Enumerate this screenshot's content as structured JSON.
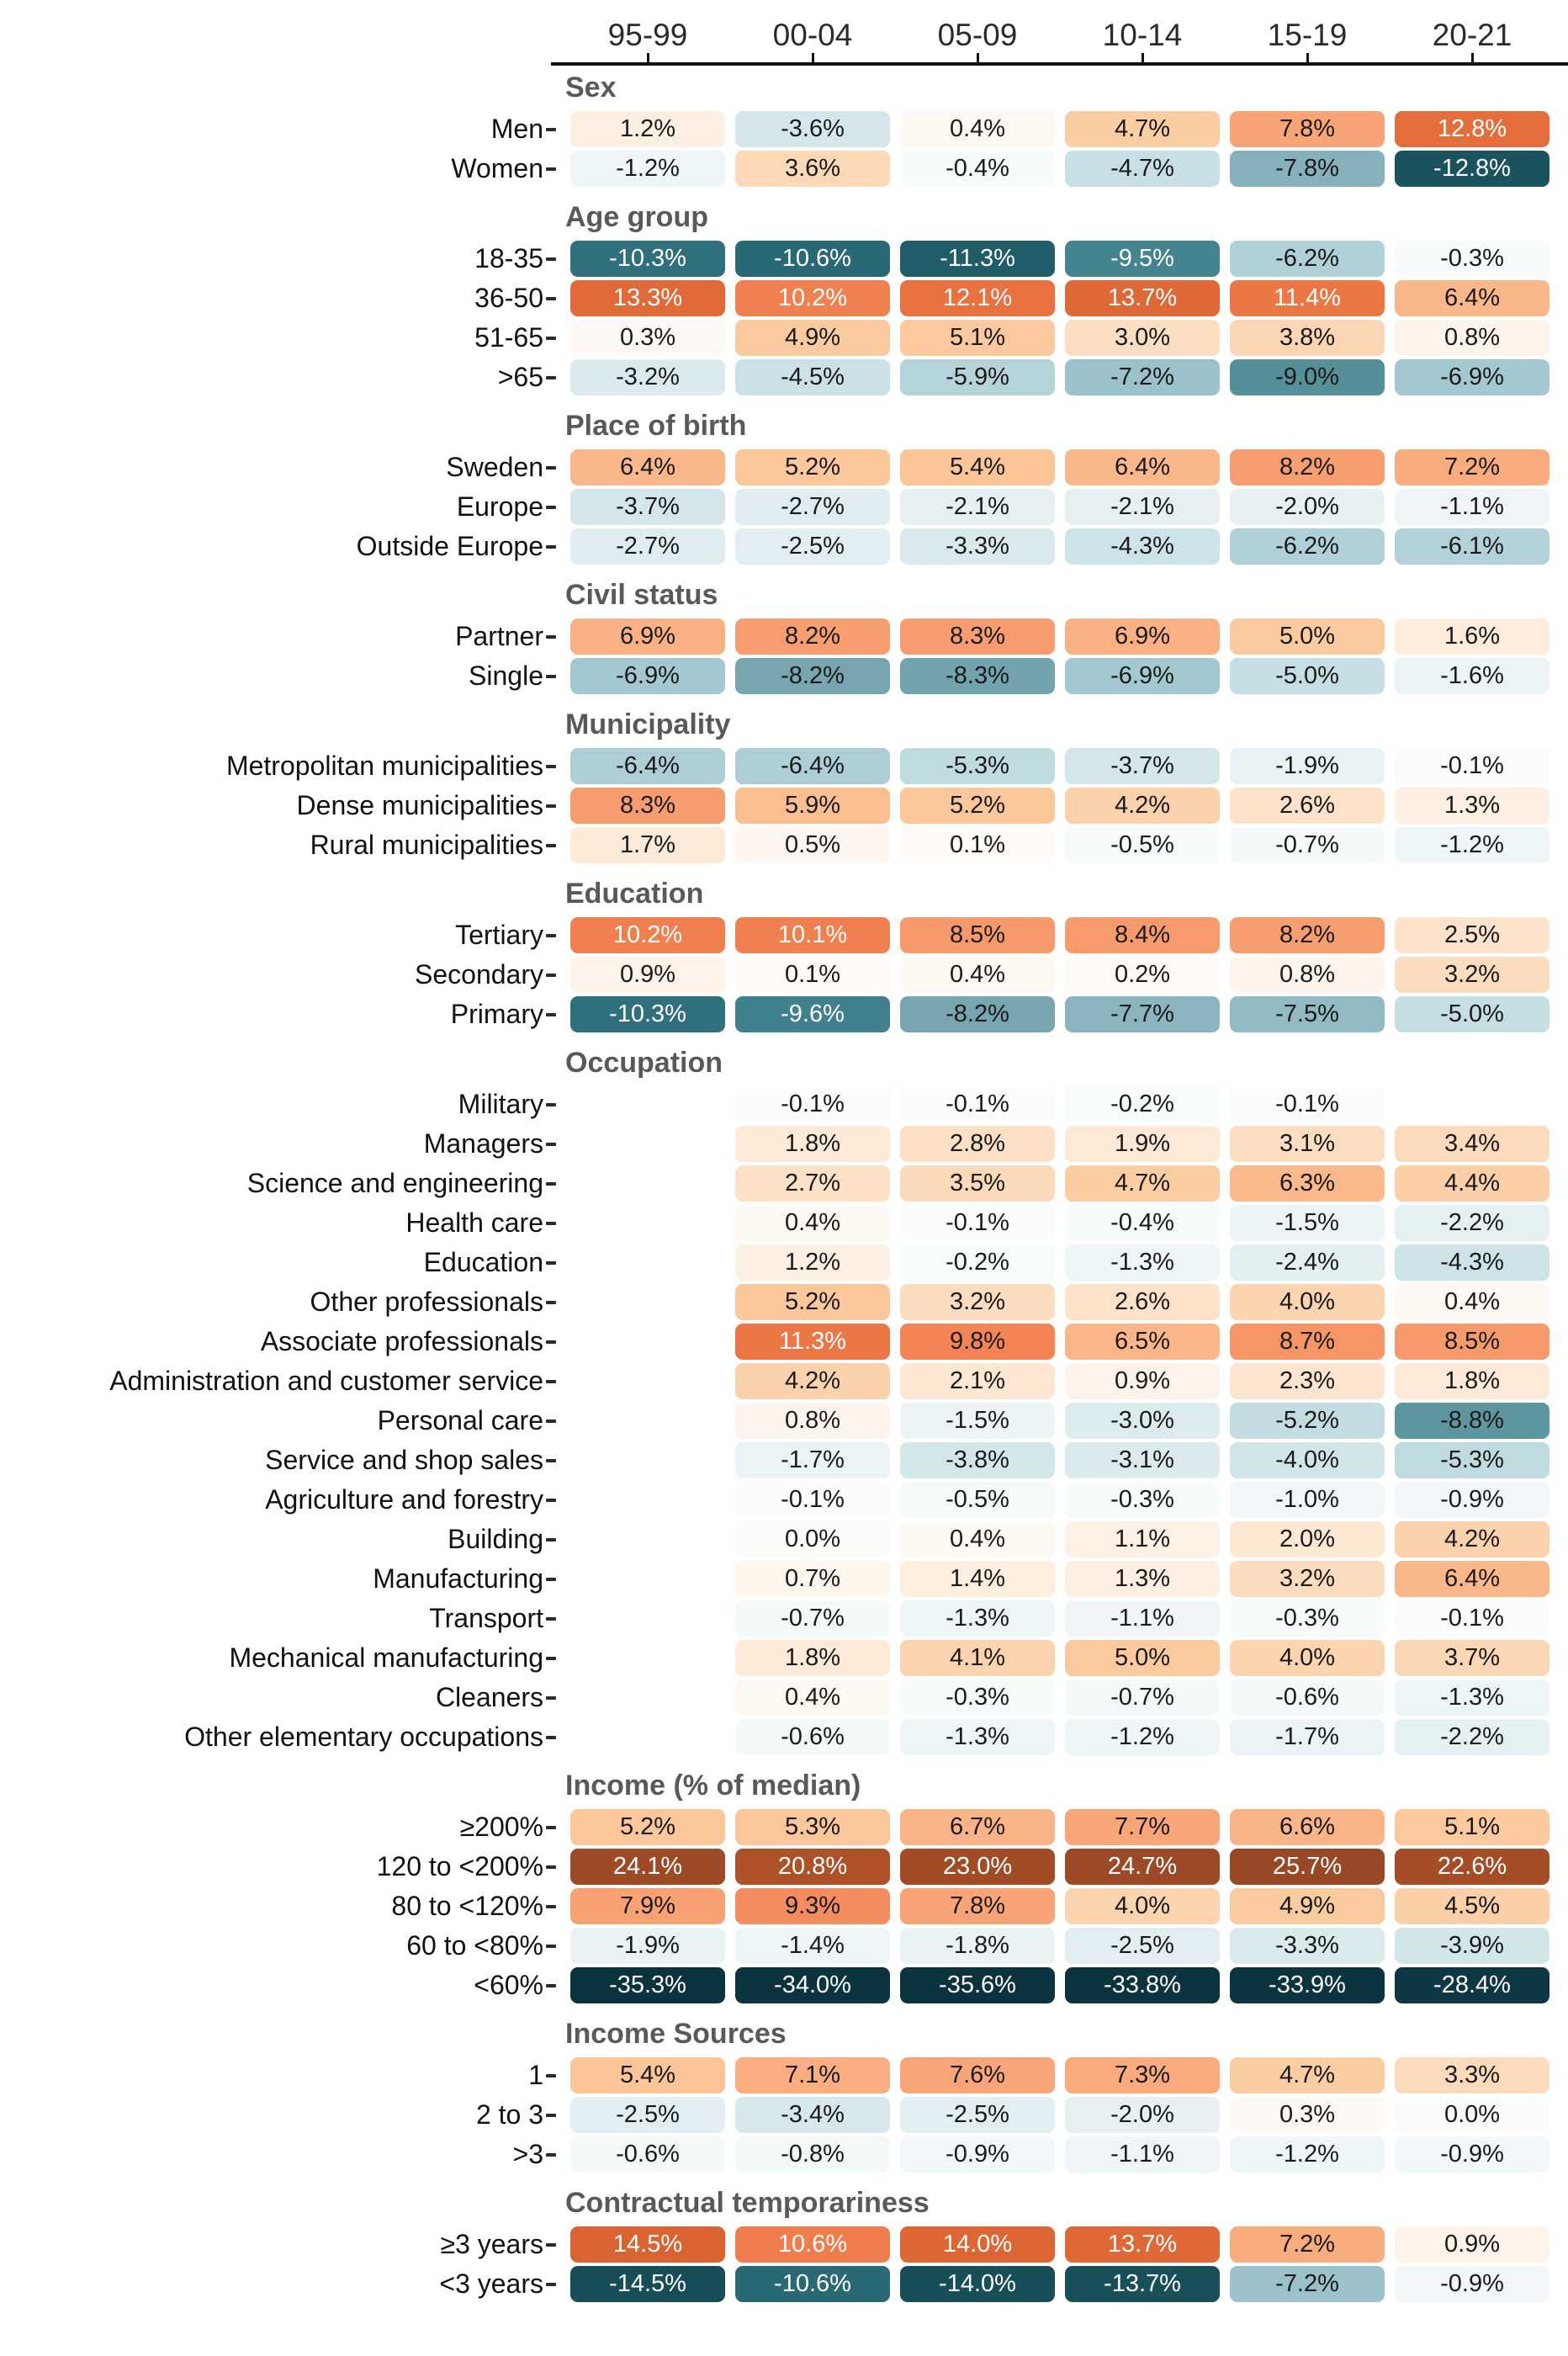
{
  "chart_data": {
    "type": "heatmap",
    "value_format": "percent_one_decimal",
    "columns": [
      "95-99",
      "00-04",
      "05-09",
      "10-14",
      "15-19",
      "20-21"
    ],
    "sections": [
      {
        "title": "Sex",
        "rows": [
          {
            "label": "Men",
            "values": [
              1.2,
              -3.6,
              0.4,
              4.7,
              7.8,
              12.8
            ]
          },
          {
            "label": "Women",
            "values": [
              -1.2,
              3.6,
              -0.4,
              -4.7,
              -7.8,
              -12.8
            ]
          }
        ]
      },
      {
        "title": "Age group",
        "rows": [
          {
            "label": "18-35",
            "values": [
              -10.3,
              -10.6,
              -11.3,
              -9.5,
              -6.2,
              -0.3
            ]
          },
          {
            "label": "36-50",
            "values": [
              13.3,
              10.2,
              12.1,
              13.7,
              11.4,
              6.4
            ]
          },
          {
            "label": "51-65",
            "values": [
              0.3,
              4.9,
              5.1,
              3.0,
              3.8,
              0.8
            ]
          },
          {
            "label": ">65",
            "values": [
              -3.2,
              -4.5,
              -5.9,
              -7.2,
              -9.0,
              -6.9
            ]
          }
        ]
      },
      {
        "title": "Place of birth",
        "rows": [
          {
            "label": "Sweden",
            "values": [
              6.4,
              5.2,
              5.4,
              6.4,
              8.2,
              7.2
            ]
          },
          {
            "label": "Europe",
            "values": [
              -3.7,
              -2.7,
              -2.1,
              -2.1,
              -2.0,
              -1.1
            ]
          },
          {
            "label": "Outside Europe",
            "values": [
              -2.7,
              -2.5,
              -3.3,
              -4.3,
              -6.2,
              -6.1
            ]
          }
        ]
      },
      {
        "title": "Civil status",
        "rows": [
          {
            "label": "Partner",
            "values": [
              6.9,
              8.2,
              8.3,
              6.9,
              5.0,
              1.6
            ]
          },
          {
            "label": "Single",
            "values": [
              -6.9,
              -8.2,
              -8.3,
              -6.9,
              -5.0,
              -1.6
            ]
          }
        ]
      },
      {
        "title": "Municipality",
        "rows": [
          {
            "label": "Metropolitan municipalities",
            "values": [
              -6.4,
              -6.4,
              -5.3,
              -3.7,
              -1.9,
              -0.1
            ]
          },
          {
            "label": "Dense municipalities",
            "values": [
              8.3,
              5.9,
              5.2,
              4.2,
              2.6,
              1.3
            ]
          },
          {
            "label": "Rural municipalities",
            "values": [
              1.7,
              0.5,
              0.1,
              -0.5,
              -0.7,
              -1.2
            ]
          }
        ]
      },
      {
        "title": "Education",
        "rows": [
          {
            "label": "Tertiary",
            "values": [
              10.2,
              10.1,
              8.5,
              8.4,
              8.2,
              2.5
            ]
          },
          {
            "label": "Secondary",
            "values": [
              0.9,
              0.1,
              0.4,
              0.2,
              0.8,
              3.2
            ]
          },
          {
            "label": "Primary",
            "values": [
              -10.3,
              -9.6,
              -8.2,
              -7.7,
              -7.5,
              -5.0
            ]
          }
        ]
      },
      {
        "title": "Occupation",
        "rows": [
          {
            "label": "Military",
            "values": [
              null,
              -0.1,
              -0.1,
              -0.2,
              -0.1,
              null
            ]
          },
          {
            "label": "Managers",
            "values": [
              null,
              1.8,
              2.8,
              1.9,
              3.1,
              3.4
            ]
          },
          {
            "label": "Science and engineering",
            "values": [
              null,
              2.7,
              3.5,
              4.7,
              6.3,
              4.4
            ]
          },
          {
            "label": "Health care",
            "values": [
              null,
              0.4,
              -0.1,
              -0.4,
              -1.5,
              -2.2
            ]
          },
          {
            "label": "Education",
            "values": [
              null,
              1.2,
              -0.2,
              -1.3,
              -2.4,
              -4.3
            ]
          },
          {
            "label": "Other professionals",
            "values": [
              null,
              5.2,
              3.2,
              2.6,
              4.0,
              0.4
            ]
          },
          {
            "label": "Associate professionals",
            "values": [
              null,
              11.3,
              9.8,
              6.5,
              8.7,
              8.5
            ]
          },
          {
            "label": "Administration and customer service",
            "values": [
              null,
              4.2,
              2.1,
              0.9,
              2.3,
              1.8
            ]
          },
          {
            "label": "Personal care",
            "values": [
              null,
              0.8,
              -1.5,
              -3.0,
              -5.2,
              -8.8
            ]
          },
          {
            "label": "Service and shop sales",
            "values": [
              null,
              -1.7,
              -3.8,
              -3.1,
              -4.0,
              -5.3
            ]
          },
          {
            "label": "Agriculture and forestry",
            "values": [
              null,
              -0.1,
              -0.5,
              -0.3,
              -1.0,
              -0.9
            ]
          },
          {
            "label": "Building",
            "values": [
              null,
              0.0,
              0.4,
              1.1,
              2.0,
              4.2
            ]
          },
          {
            "label": "Manufacturing",
            "values": [
              null,
              0.7,
              1.4,
              1.3,
              3.2,
              6.4
            ]
          },
          {
            "label": "Transport",
            "values": [
              null,
              -0.7,
              -1.3,
              -1.1,
              -0.3,
              -0.1
            ]
          },
          {
            "label": "Mechanical manufacturing",
            "values": [
              null,
              1.8,
              4.1,
              5.0,
              4.0,
              3.7
            ]
          },
          {
            "label": "Cleaners",
            "values": [
              null,
              0.4,
              -0.3,
              -0.7,
              -0.6,
              -1.3
            ]
          },
          {
            "label": "Other elementary occupations",
            "values": [
              null,
              -0.6,
              -1.3,
              -1.2,
              -1.7,
              -2.2
            ]
          }
        ]
      },
      {
        "title": "Income (% of median)",
        "rows": [
          {
            "label": "≥200%",
            "values": [
              5.2,
              5.3,
              6.7,
              7.7,
              6.6,
              5.1
            ]
          },
          {
            "label": "120 to <200%",
            "values": [
              24.1,
              20.8,
              23.0,
              24.7,
              25.7,
              22.6
            ]
          },
          {
            "label": "80 to <120%",
            "values": [
              7.9,
              9.3,
              7.8,
              4.0,
              4.9,
              4.5
            ]
          },
          {
            "label": "60 to <80%",
            "values": [
              -1.9,
              -1.4,
              -1.8,
              -2.5,
              -3.3,
              -3.9
            ]
          },
          {
            "label": "<60%",
            "values": [
              -35.3,
              -34.0,
              -35.6,
              -33.8,
              -33.9,
              -28.4
            ]
          }
        ]
      },
      {
        "title": "Income Sources",
        "rows": [
          {
            "label": "1",
            "values": [
              5.4,
              7.1,
              7.6,
              7.3,
              4.7,
              3.3
            ]
          },
          {
            "label": "2 to 3",
            "values": [
              -2.5,
              -3.4,
              -2.5,
              -2.0,
              0.3,
              0.0
            ]
          },
          {
            "label": ">3",
            "values": [
              -0.6,
              -0.8,
              -0.9,
              -1.1,
              -1.2,
              -0.9
            ]
          }
        ]
      },
      {
        "title": "Contractual temporariness",
        "rows": [
          {
            "label": "≥3 years",
            "values": [
              14.5,
              10.6,
              14.0,
              13.7,
              7.2,
              0.9
            ]
          },
          {
            "label": "<3 years",
            "values": [
              -14.5,
              -10.6,
              -14.0,
              -13.7,
              -7.2,
              -0.9
            ]
          }
        ]
      }
    ],
    "colormap": {
      "positive_stops": [
        [
          0,
          "#FEFCFA"
        ],
        [
          2,
          "#FDE8D4"
        ],
        [
          5,
          "#FBCA9E"
        ],
        [
          8,
          "#F8A173"
        ],
        [
          10,
          "#F18152"
        ],
        [
          12,
          "#E97240"
        ],
        [
          14.5,
          "#D96431"
        ],
        [
          18,
          "#BC5629"
        ],
        [
          24,
          "#9D4A27"
        ],
        [
          30,
          "#8B4323"
        ],
        [
          40,
          "#7A3B1F"
        ]
      ],
      "negative_stops": [
        [
          0,
          "#FBFDFD"
        ],
        [
          1,
          "#F1F7F8"
        ],
        [
          2,
          "#E7F1F3"
        ],
        [
          3,
          "#DCEBEE"
        ],
        [
          5,
          "#C5DEE3"
        ],
        [
          7,
          "#A2C7CF"
        ],
        [
          8,
          "#7FACB7"
        ],
        [
          9,
          "#559099"
        ],
        [
          9.7,
          "#3D7F8B"
        ],
        [
          10.5,
          "#2A6B77"
        ],
        [
          11.5,
          "#1E5A66"
        ],
        [
          13,
          "#19525C"
        ],
        [
          16,
          "#144750"
        ],
        [
          22,
          "#0F3D48"
        ],
        [
          30,
          "#0C3640"
        ],
        [
          40,
          "#0A313B"
        ]
      ],
      "white_text_positive_min": 9.95,
      "white_text_negative_max": -9.3
    },
    "layout": {
      "grid_on": false,
      "legend": "none"
    }
  },
  "colors": {
    "background": "#ffffff",
    "axis_line": "#111111",
    "axis_tick": "#111111",
    "column_label": "#2b2b2b",
    "section_title": "#595959",
    "row_label": "#111111",
    "row_tick": "#2b2b2b",
    "cell_text_dark": "#1a1a1a",
    "cell_text_light": "#ffffff"
  }
}
